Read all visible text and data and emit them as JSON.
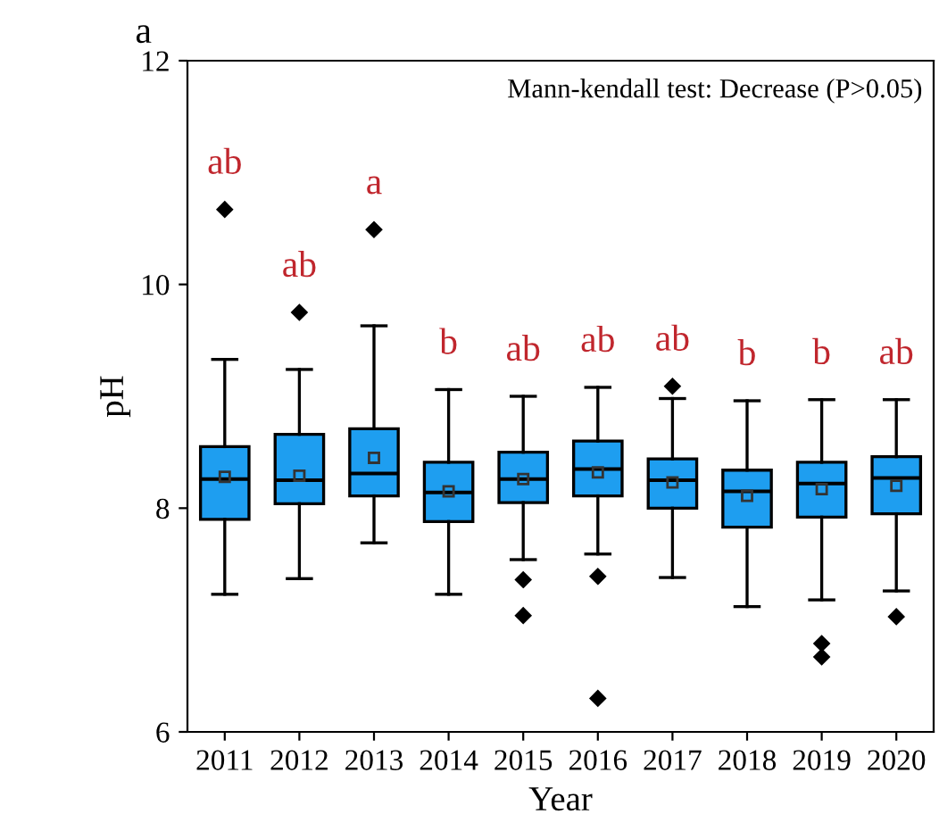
{
  "chart_data": {
    "type": "box",
    "title": "a",
    "xlabel": "Year",
    "ylabel": "pH",
    "categories": [
      "2011",
      "2012",
      "2013",
      "2014",
      "2015",
      "2016",
      "2017",
      "2018",
      "2019",
      "2020"
    ],
    "color": "#1e9ef0",
    "ylim": [
      6,
      12
    ],
    "yticks": [
      6,
      8,
      10,
      12
    ],
    "grid": false,
    "boxes": [
      {
        "low": 7.23,
        "q1": 7.9,
        "median": 8.26,
        "q3": 8.55,
        "high": 9.33,
        "mean": 8.28,
        "outliers": [
          10.67
        ]
      },
      {
        "low": 7.37,
        "q1": 8.04,
        "median": 8.25,
        "q3": 8.66,
        "high": 9.24,
        "mean": 8.29,
        "outliers": [
          9.75
        ]
      },
      {
        "low": 7.69,
        "q1": 8.11,
        "median": 8.31,
        "q3": 8.71,
        "high": 9.63,
        "mean": 8.45,
        "outliers": [
          10.49
        ]
      },
      {
        "low": 7.23,
        "q1": 7.88,
        "median": 8.14,
        "q3": 8.41,
        "high": 9.06,
        "mean": 8.15
      },
      {
        "low": 7.54,
        "q1": 8.05,
        "median": 8.26,
        "q3": 8.5,
        "high": 9.0,
        "mean": 8.26,
        "outliers": [
          7.36,
          7.04
        ]
      },
      {
        "low": 7.59,
        "q1": 8.11,
        "median": 8.35,
        "q3": 8.6,
        "high": 9.08,
        "mean": 8.32,
        "outliers": [
          7.39,
          6.3
        ]
      },
      {
        "low": 7.38,
        "q1": 8.0,
        "median": 8.25,
        "q3": 8.44,
        "high": 8.98,
        "mean": 8.23,
        "outliers": [
          9.09
        ]
      },
      {
        "low": 7.12,
        "q1": 7.83,
        "median": 8.15,
        "q3": 8.34,
        "high": 8.96,
        "mean": 8.11
      },
      {
        "low": 7.18,
        "q1": 7.92,
        "median": 8.22,
        "q3": 8.41,
        "high": 8.97,
        "mean": 8.17,
        "outliers": [
          6.79,
          6.67
        ]
      },
      {
        "low": 7.26,
        "q1": 7.95,
        "median": 8.27,
        "q3": 8.46,
        "high": 8.97,
        "mean": 8.2,
        "outliers": [
          7.03
        ]
      }
    ],
    "annotations": [
      "Mann-kendall test: Decrease (P>0.05)",
      "ab",
      "ab",
      "a",
      "b",
      "ab",
      "ab",
      "ab",
      "b",
      "b",
      "ab"
    ]
  }
}
